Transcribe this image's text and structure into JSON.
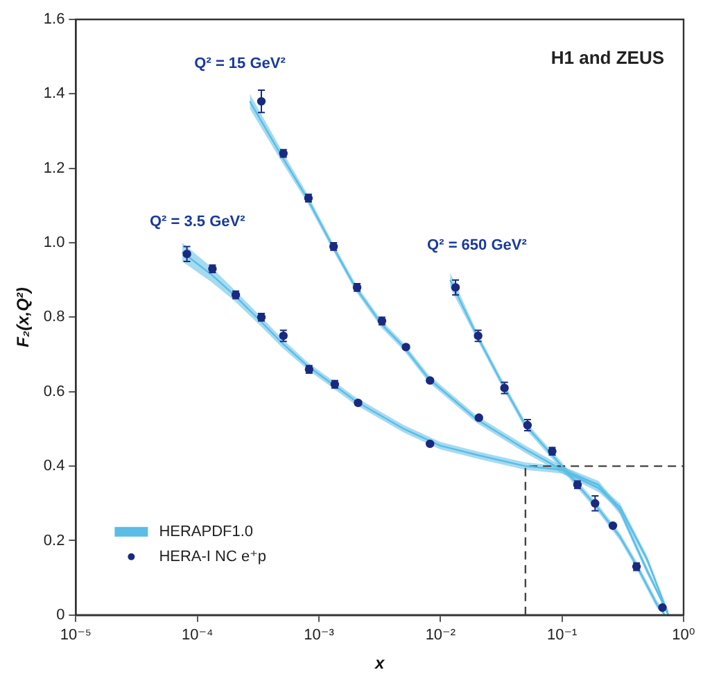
{
  "chart_data": {
    "type": "scatter",
    "title": "H1 and ZEUS",
    "xlabel": "x",
    "ylabel": "F₂(x,Q²)",
    "log": "x",
    "xlim": [
      1e-05,
      1
    ],
    "xticks": [
      {
        "value": 1e-05,
        "label": "10⁻⁵"
      },
      {
        "value": 0.0001,
        "label": "10⁻⁴"
      },
      {
        "value": 0.001,
        "label": "10⁻³"
      },
      {
        "value": 0.01,
        "label": "10⁻²"
      },
      {
        "value": 0.1,
        "label": "10⁻¹"
      },
      {
        "value": 1,
        "label": "10⁰"
      }
    ],
    "ylim": [
      0,
      1.6
    ],
    "yticks": [
      0,
      0.2,
      0.4,
      0.6,
      0.8,
      {
        "value": 1,
        "label": "1.0"
      },
      1.2,
      1.4,
      1.6
    ],
    "grid": false,
    "legend": "bottom left",
    "annotations": [
      "Q² = 15 GeV²",
      "Q² = 3.5 GeV²",
      "Q² = 650 GeV²"
    ],
    "series": [
      {
        "type": "line",
        "name": "HERAPDF1.0",
        "color": "#5bbde6",
        "marker": "none",
        "x": [
          7.5e-05,
          0.00013,
          0.0002,
          0.00033,
          0.0005,
          0.0008,
          0.0013,
          0.002,
          0.005,
          0.01,
          0.02,
          0.05,
          0.1,
          0.2,
          0.3,
          0.5,
          0.75
        ],
        "values": [
          0.975,
          0.915,
          0.86,
          0.79,
          0.73,
          0.67,
          0.62,
          0.575,
          0.5,
          0.455,
          0.43,
          0.4,
          0.39,
          0.35,
          0.28,
          0.12,
          0.0
        ],
        "lower": [
          0.95,
          0.895,
          0.845,
          0.777,
          0.718,
          0.66,
          0.61,
          0.565,
          0.49,
          0.445,
          0.42,
          0.39,
          0.38,
          0.34,
          0.27,
          0.11,
          0.0
        ],
        "upper": [
          1.0,
          0.935,
          0.875,
          0.803,
          0.742,
          0.68,
          0.63,
          0.585,
          0.51,
          0.465,
          0.44,
          0.41,
          0.4,
          0.36,
          0.29,
          0.13,
          0.01
        ]
      },
      {
        "type": "line",
        "color": "#5bbde6",
        "marker": "none",
        "x": [
          0.00027,
          0.0005,
          0.0008,
          0.0013,
          0.002,
          0.0033,
          0.005,
          0.008,
          0.02,
          0.05,
          0.1,
          0.2,
          0.3,
          0.5,
          0.75
        ],
        "values": [
          1.38,
          1.23,
          1.12,
          0.99,
          0.88,
          0.78,
          0.72,
          0.635,
          0.525,
          0.445,
          0.39,
          0.34,
          0.29,
          0.15,
          0.0
        ],
        "lower": [
          1.36,
          1.215,
          1.108,
          0.98,
          0.87,
          0.77,
          0.71,
          0.625,
          0.515,
          0.435,
          0.38,
          0.33,
          0.28,
          0.14,
          0.0
        ],
        "upper": [
          1.4,
          1.245,
          1.132,
          1.0,
          0.89,
          0.79,
          0.73,
          0.645,
          0.535,
          0.455,
          0.4,
          0.35,
          0.3,
          0.16,
          0.01
        ]
      },
      {
        "type": "line",
        "color": "#5bbde6",
        "marker": "none",
        "x": [
          0.012,
          0.02,
          0.033,
          0.05,
          0.08,
          0.1,
          0.13,
          0.2,
          0.3,
          0.4,
          0.6,
          0.7
        ],
        "values": [
          0.9,
          0.75,
          0.615,
          0.51,
          0.435,
          0.4,
          0.355,
          0.285,
          0.21,
          0.14,
          0.03,
          0.0
        ],
        "lower": [
          0.88,
          0.74,
          0.605,
          0.5,
          0.425,
          0.39,
          0.345,
          0.275,
          0.2,
          0.13,
          0.02,
          0.0
        ],
        "upper": [
          0.92,
          0.76,
          0.625,
          0.52,
          0.445,
          0.41,
          0.365,
          0.295,
          0.22,
          0.15,
          0.04,
          0.01
        ]
      },
      {
        "type": "line",
        "color": "#444444",
        "marker": "none",
        "line_style": "dashed",
        "x": [
          0.05,
          0.05,
          1
        ],
        "values": [
          0,
          0.4,
          0.4
        ]
      },
      {
        "name": "HERA-I NC e⁺p",
        "color": "#1a2a80",
        "marker": "circle",
        "x": [
          8.2e-05,
          0.000133,
          0.000207,
          0.000336,
          0.00051,
          0.00083,
          0.00135,
          0.0021,
          0.0082
        ],
        "values": [
          0.97,
          0.93,
          0.86,
          0.8,
          0.75,
          0.66,
          0.62,
          0.57,
          0.46
        ],
        "errors": [
          0.02,
          0.01,
          0.01,
          0.01,
          0.015,
          0.01,
          0.01,
          0.005,
          0.005
        ]
      },
      {
        "color": "#1a2a80",
        "marker": "circle",
        "x": [
          0.000336,
          0.00051,
          0.00082,
          0.00132,
          0.00206,
          0.0033,
          0.0052,
          0.0082,
          0.0207
        ],
        "values": [
          1.38,
          1.24,
          1.12,
          0.99,
          0.88,
          0.79,
          0.72,
          0.63,
          0.53
        ],
        "errors": [
          0.03,
          0.01,
          0.01,
          0.01,
          0.01,
          0.01,
          0.005,
          0.005,
          0.005
        ]
      },
      {
        "color": "#1a2a80",
        "marker": "circle",
        "x": [
          0.0133,
          0.0204,
          0.0336,
          0.052,
          0.083,
          0.134,
          0.187,
          0.262,
          0.41,
          0.67
        ],
        "values": [
          0.88,
          0.75,
          0.61,
          0.51,
          0.44,
          0.35,
          0.3,
          0.24,
          0.13,
          0.02
        ],
        "errors": [
          0.02,
          0.015,
          0.015,
          0.015,
          0.01,
          0.01,
          0.02,
          0.005,
          0.01,
          null
        ]
      }
    ]
  }
}
